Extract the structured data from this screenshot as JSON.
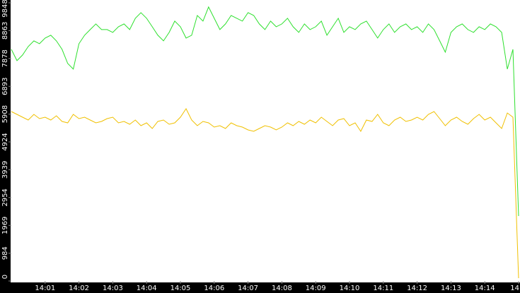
{
  "chart_data": {
    "type": "line",
    "categories": [
      null,
      null,
      null,
      null,
      null,
      null,
      "14:01",
      null,
      null,
      null,
      null,
      null,
      "14:02",
      null,
      null,
      null,
      null,
      null,
      "14:03",
      null,
      null,
      null,
      null,
      null,
      "14:04",
      null,
      null,
      null,
      null,
      null,
      "14:05",
      null,
      null,
      null,
      null,
      null,
      "14:06",
      null,
      null,
      null,
      null,
      null,
      "14:07",
      null,
      null,
      null,
      null,
      null,
      "14:08",
      null,
      null,
      null,
      null,
      null,
      "14:09",
      null,
      null,
      null,
      null,
      null,
      "14:10",
      null,
      null,
      null,
      null,
      null,
      "14:11",
      null,
      null,
      null,
      null,
      null,
      "14:12",
      null,
      null,
      null,
      null,
      null,
      "14:13",
      null,
      null,
      null,
      null,
      null,
      "14:14",
      null,
      null,
      null,
      null,
      null,
      "14"
    ],
    "series": [
      {
        "color": "#2ee02e",
        "values": [
          8200,
          7800,
          8000,
          8300,
          8500,
          8400,
          8600,
          8700,
          8500,
          8200,
          7700,
          7500,
          8400,
          8700,
          8900,
          9100,
          8900,
          8900,
          8800,
          9000,
          9100,
          8900,
          9300,
          9500,
          9300,
          9000,
          8700,
          8500,
          8800,
          9200,
          9000,
          8600,
          8700,
          9400,
          9200,
          9700,
          9300,
          8900,
          9100,
          9400,
          9300,
          9200,
          9500,
          9400,
          9100,
          8900,
          9200,
          9000,
          9100,
          9300,
          9000,
          8800,
          9100,
          8900,
          9000,
          9200,
          8700,
          9000,
          9300,
          8800,
          9000,
          8900,
          9100,
          9200,
          8900,
          8600,
          8900,
          9100,
          8800,
          9000,
          9100,
          8900,
          9000,
          8800,
          9100,
          8900,
          8500,
          8100,
          8800,
          9000,
          9100,
          8900,
          8800,
          9000,
          8900,
          9100,
          9000,
          8800,
          7500,
          8200,
          2300
        ]
      },
      {
        "color": "#f0c000",
        "values": [
          6000,
          5900,
          5800,
          5700,
          5900,
          5750,
          5800,
          5700,
          5850,
          5650,
          5600,
          5900,
          5750,
          5800,
          5700,
          5600,
          5650,
          5750,
          5800,
          5600,
          5650,
          5550,
          5700,
          5500,
          5600,
          5400,
          5650,
          5700,
          5550,
          5600,
          5800,
          6100,
          5700,
          5500,
          5650,
          5600,
          5450,
          5500,
          5400,
          5600,
          5500,
          5450,
          5350,
          5300,
          5400,
          5500,
          5450,
          5350,
          5450,
          5600,
          5500,
          5650,
          5550,
          5700,
          5600,
          5800,
          5650,
          5500,
          5700,
          5750,
          5500,
          5600,
          5300,
          5700,
          5650,
          5900,
          5600,
          5500,
          5700,
          5800,
          5650,
          5700,
          5800,
          5700,
          5900,
          6000,
          5750,
          5500,
          5700,
          5800,
          5650,
          5550,
          5750,
          5900,
          5700,
          5800,
          5600,
          5400,
          5950,
          5800,
          100
        ]
      }
    ],
    "ylim": [
      0,
      9848
    ],
    "yticks": [
      0,
      984,
      1969,
      2954,
      3939,
      4924,
      5908,
      6893,
      7878,
      8863,
      9848
    ]
  }
}
